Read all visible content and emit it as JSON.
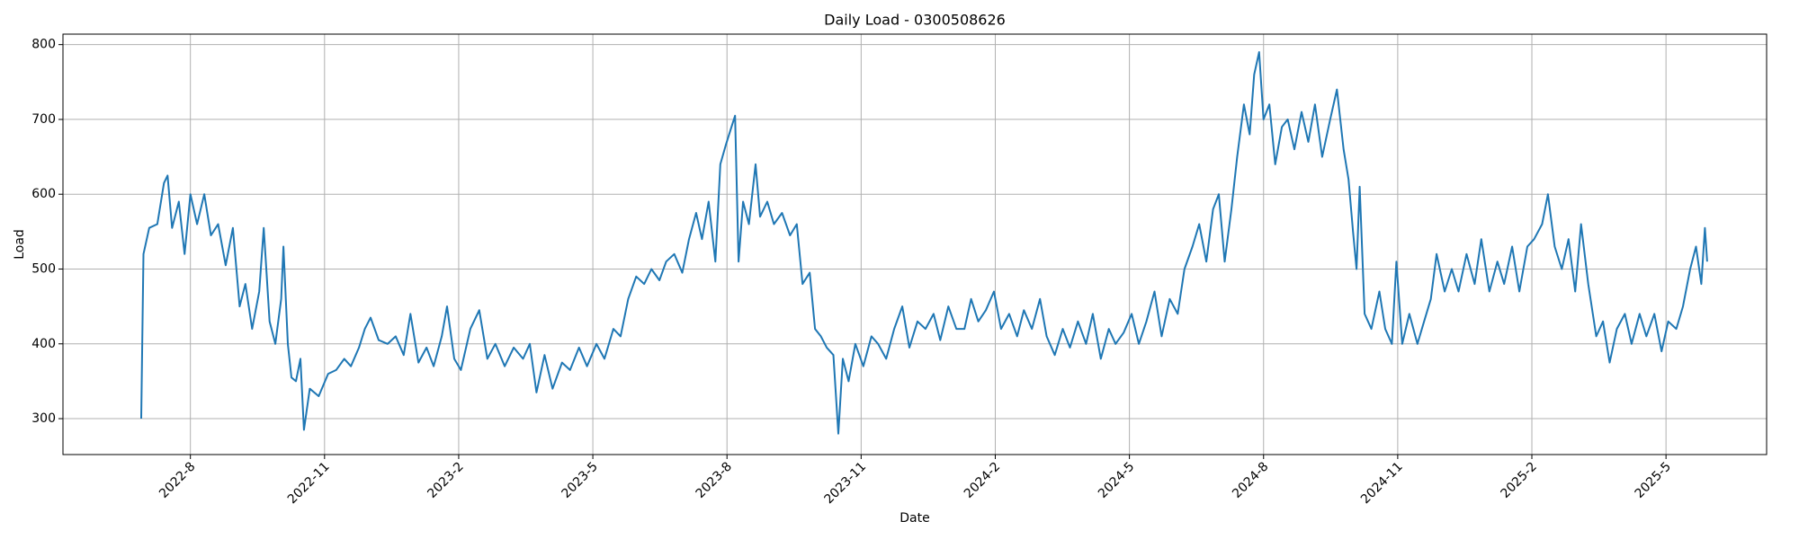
{
  "chart_data": {
    "type": "line",
    "title": "Daily Load - 0300508626",
    "x_label": "Date",
    "y_label": "Load",
    "x": [
      5.9,
      5.95,
      6.08,
      6.26,
      6.41,
      6.49,
      6.59,
      6.74,
      6.87,
      7.0,
      7.15,
      7.31,
      7.46,
      7.62,
      7.79,
      7.95,
      8.1,
      8.23,
      8.38,
      8.54,
      8.64,
      8.77,
      8.9,
      9.03,
      9.08,
      9.18,
      9.26,
      9.36,
      9.46,
      9.54,
      9.67,
      9.87,
      10.08,
      10.26,
      10.44,
      10.59,
      10.77,
      10.9,
      11.03,
      11.21,
      11.41,
      11.59,
      11.77,
      11.92,
      12.1,
      12.28,
      12.44,
      12.62,
      12.74,
      12.9,
      13.05,
      13.26,
      13.46,
      13.64,
      13.82,
      14.03,
      14.23,
      14.44,
      14.59,
      14.74,
      14.92,
      15.1,
      15.31,
      15.49,
      15.69,
      15.87,
      16.08,
      16.26,
      16.46,
      16.62,
      16.79,
      16.97,
      17.15,
      17.31,
      17.49,
      17.64,
      17.82,
      18.0,
      18.15,
      18.31,
      18.44,
      18.59,
      18.74,
      18.85,
      18.97,
      19.1,
      19.18,
      19.26,
      19.36,
      19.49,
      19.64,
      19.74,
      19.9,
      20.05,
      20.23,
      20.41,
      20.56,
      20.69,
      20.85,
      20.97,
      21.1,
      21.23,
      21.38,
      21.49,
      21.59,
      21.72,
      21.87,
      22.05,
      22.23,
      22.38,
      22.56,
      22.74,
      22.92,
      23.08,
      23.26,
      23.44,
      23.62,
      23.77,
      23.95,
      24.13,
      24.31,
      24.46,
      24.62,
      24.79,
      24.97,
      25.13,
      25.31,
      25.49,
      25.64,
      25.82,
      26.0,
      26.15,
      26.33,
      26.51,
      26.67,
      26.85,
      27.03,
      27.18,
      27.36,
      27.54,
      27.69,
      27.87,
      28.05,
      28.21,
      28.38,
      28.56,
      28.72,
      28.9,
      29.08,
      29.23,
      29.41,
      29.56,
      29.72,
      29.87,
      30.0,
      30.13,
      30.28,
      30.41,
      30.56,
      30.69,
      30.79,
      30.9,
      31.0,
      31.13,
      31.26,
      31.41,
      31.54,
      31.69,
      31.85,
      32.0,
      32.15,
      32.31,
      32.49,
      32.64,
      32.79,
      32.9,
      33.0,
      33.08,
      33.15,
      33.26,
      33.41,
      33.59,
      33.72,
      33.87,
      33.97,
      34.1,
      34.26,
      34.44,
      34.59,
      34.74,
      34.87,
      35.05,
      35.21,
      35.36,
      35.54,
      35.72,
      35.87,
      36.05,
      36.23,
      36.38,
      36.56,
      36.72,
      36.9,
      37.05,
      37.23,
      37.36,
      37.51,
      37.67,
      37.82,
      37.97,
      38.1,
      38.26,
      38.44,
      38.59,
      38.74,
      38.9,
      39.08,
      39.23,
      39.41,
      39.56,
      39.74,
      39.9,
      40.05,
      40.23,
      40.38,
      40.54,
      40.67,
      40.79,
      40.87,
      40.92
    ],
    "series": [
      {
        "color": "#1f77b4",
        "values": [
          300,
          520,
          555,
          560,
          615,
          625,
          555,
          590,
          520,
          600,
          560,
          600,
          545,
          560,
          505,
          555,
          450,
          480,
          420,
          470,
          555,
          430,
          400,
          460,
          530,
          400,
          355,
          350,
          380,
          285,
          340,
          330,
          360,
          365,
          380,
          370,
          395,
          420,
          435,
          405,
          400,
          410,
          385,
          440,
          375,
          395,
          370,
          410,
          450,
          380,
          365,
          420,
          445,
          380,
          400,
          370,
          395,
          380,
          400,
          335,
          385,
          340,
          375,
          365,
          395,
          370,
          400,
          380,
          420,
          410,
          460,
          490,
          480,
          500,
          485,
          510,
          520,
          495,
          540,
          575,
          540,
          590,
          510,
          640,
          665,
          690,
          705,
          510,
          590,
          560,
          640,
          570,
          590,
          560,
          575,
          545,
          560,
          480,
          495,
          420,
          410,
          395,
          385,
          280,
          380,
          350,
          400,
          370,
          410,
          400,
          380,
          420,
          450,
          395,
          430,
          420,
          440,
          405,
          450,
          420,
          420,
          460,
          430,
          445,
          470,
          420,
          440,
          410,
          445,
          420,
          460,
          410,
          385,
          420,
          395,
          430,
          400,
          440,
          380,
          420,
          400,
          415,
          440,
          400,
          430,
          470,
          410,
          460,
          440,
          500,
          530,
          560,
          510,
          580,
          600,
          510,
          580,
          650,
          720,
          680,
          760,
          790,
          700,
          720,
          640,
          690,
          700,
          660,
          710,
          670,
          720,
          650,
          700,
          740,
          660,
          620,
          550,
          500,
          610,
          440,
          420,
          470,
          420,
          400,
          510,
          400,
          440,
          400,
          430,
          460,
          520,
          470,
          500,
          470,
          520,
          480,
          540,
          470,
          510,
          480,
          530,
          470,
          530,
          540,
          560,
          600,
          530,
          500,
          540,
          470,
          560,
          480,
          410,
          430,
          375,
          420,
          440,
          400,
          440,
          410,
          440,
          390,
          430,
          420,
          450,
          500,
          530,
          480,
          555,
          510
        ]
      }
    ],
    "xlim": [
      4.15,
      42.25
    ],
    "xticks": [
      {
        "value": 7,
        "label": "2022-8"
      },
      {
        "value": 10,
        "label": "2022-11"
      },
      {
        "value": 13,
        "label": "2023-2"
      },
      {
        "value": 16,
        "label": "2023-5"
      },
      {
        "value": 19,
        "label": "2023-8"
      },
      {
        "value": 22,
        "label": "2023-11"
      },
      {
        "value": 25,
        "label": "2024-2"
      },
      {
        "value": 28,
        "label": "2024-5"
      },
      {
        "value": 31,
        "label": "2024-8"
      },
      {
        "value": 34,
        "label": "2024-11"
      },
      {
        "value": 37,
        "label": "2025-2"
      },
      {
        "value": 40,
        "label": "2025-5"
      }
    ],
    "ylim": [
      252,
      814
    ],
    "yticks": [
      300,
      400,
      500,
      600,
      700,
      800
    ],
    "grid": true
  }
}
